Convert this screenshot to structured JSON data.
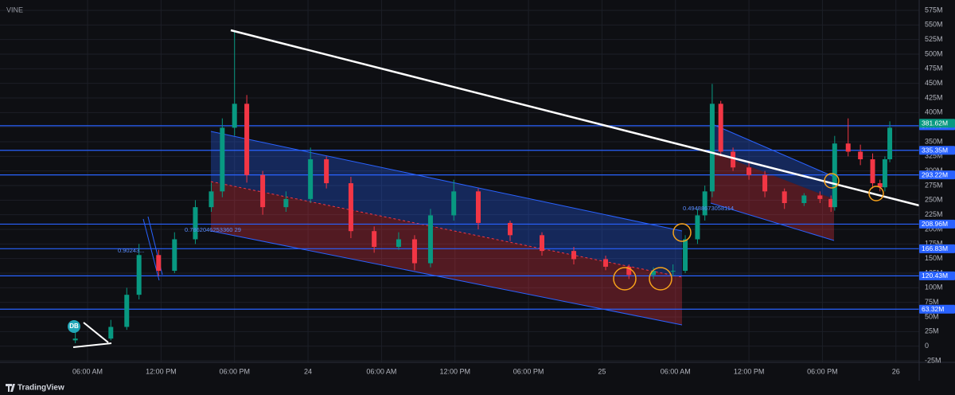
{
  "chart_data": {
    "type": "candlestick",
    "title": "VINE",
    "brand": "TradingView",
    "marker": "DB",
    "grid": true,
    "up_color": "#089981",
    "down_color": "#f23645",
    "level_color": "#2962ff",
    "last_price_color": "#089981",
    "xlim": [
      -1.15,
      73.9
    ],
    "ylim": [
      -27.7,
      592.7
    ],
    "xticks": [
      {
        "value": 6,
        "label": "06:00 AM"
      },
      {
        "value": 12,
        "label": "12:00 PM"
      },
      {
        "value": 18,
        "label": "06:00 PM"
      },
      {
        "value": 24,
        "label": "24"
      },
      {
        "value": 30,
        "label": "06:00 AM"
      },
      {
        "value": 36,
        "label": "12:00 PM"
      },
      {
        "value": 42,
        "label": "06:00 PM"
      },
      {
        "value": 48,
        "label": "25"
      },
      {
        "value": 54,
        "label": "06:00 AM"
      },
      {
        "value": 60,
        "label": "12:00 PM"
      },
      {
        "value": 66,
        "label": "06:00 PM"
      },
      {
        "value": 72,
        "label": "26"
      }
    ],
    "yticks": [
      {
        "value": -25,
        "label": "-25M"
      },
      0,
      {
        "value": 25,
        "label": "25M"
      },
      {
        "value": 50,
        "label": "50M"
      },
      {
        "value": 75,
        "label": "75M"
      },
      {
        "value": 100,
        "label": "100M"
      },
      {
        "value": 125,
        "label": "125M"
      },
      {
        "value": 150,
        "label": "150M"
      },
      {
        "value": 175,
        "label": "175M"
      },
      {
        "value": 200,
        "label": "200M"
      },
      {
        "value": 225,
        "label": "225M"
      },
      {
        "value": 250,
        "label": "250M"
      },
      {
        "value": 275,
        "label": "275M"
      },
      {
        "value": 300,
        "label": "300M"
      },
      {
        "value": 325,
        "label": "325M"
      },
      {
        "value": 350,
        "label": "350M"
      },
      {
        "value": 375,
        "label": "375M"
      },
      {
        "value": 400,
        "label": "400M"
      },
      {
        "value": 425,
        "label": "425M"
      },
      {
        "value": 450,
        "label": "450M"
      },
      {
        "value": 475,
        "label": "475M"
      },
      {
        "value": 500,
        "label": "500M"
      },
      {
        "value": 525,
        "label": "525M"
      },
      {
        "value": 550,
        "label": "550M"
      },
      {
        "value": 575,
        "label": "575M"
      }
    ],
    "levels": [
      {
        "value": 377.48,
        "label": "377.48M"
      },
      {
        "value": 335.35,
        "label": "335.35M"
      },
      {
        "value": 293.22,
        "label": "293.22M"
      },
      {
        "value": 208.96,
        "label": "208.96M"
      },
      {
        "value": 166.83,
        "label": "166.83M"
      },
      {
        "value": 120.43,
        "label": "120.43M"
      },
      {
        "value": 63.32,
        "label": "63.32M"
      }
    ],
    "last_price": {
      "value": 381.62,
      "label": "381.62M"
    },
    "annotations": [
      "0.7862046253360 29",
      "0.90243...",
      "0.49488673058114"
    ],
    "candles": {
      "x": [
        5,
        7.9,
        9.2,
        10.2,
        11.8,
        13.1,
        14.8,
        16.1,
        17,
        18,
        19,
        20.3,
        22.2,
        24.2,
        25.5,
        27.5,
        29.4,
        31.4,
        32.7,
        34,
        35.9,
        37.9,
        40.5,
        43.1,
        45.7,
        48.3,
        50.2,
        52.2,
        53.8,
        54.8,
        55.8,
        56.4,
        57,
        57.7,
        58.7,
        60,
        61.3,
        62.9,
        64.5,
        65.8,
        66.7,
        67,
        68.1,
        69.1,
        70.1,
        70.7,
        71.1,
        71.5
      ],
      "open": [
        10,
        13,
        33,
        88,
        156,
        129,
        183,
        238,
        265,
        374,
        415,
        293,
        238,
        252,
        320,
        279,
        197,
        170,
        183,
        142,
        224,
        265,
        211,
        190,
        163,
        149,
        136,
        122,
        129,
        129,
        183,
        224,
        265,
        415,
        333,
        306,
        293,
        265,
        245,
        258,
        252,
        238,
        347,
        333,
        320,
        279,
        272,
        320
      ],
      "high": [
        25,
        45,
        100,
        175,
        165,
        195,
        250,
        280,
        390,
        538,
        430,
        300,
        265,
        340,
        325,
        290,
        205,
        195,
        190,
        235,
        285,
        270,
        215,
        195,
        170,
        155,
        140,
        135,
        140,
        190,
        235,
        275,
        449,
        420,
        340,
        315,
        300,
        270,
        262,
        265,
        258,
        360,
        390,
        345,
        330,
        285,
        325,
        385
      ],
      "low": [
        5,
        10,
        28,
        80,
        120,
        125,
        175,
        230,
        255,
        360,
        280,
        225,
        230,
        245,
        270,
        185,
        160,
        165,
        130,
        135,
        215,
        200,
        180,
        155,
        140,
        130,
        115,
        115,
        120,
        125,
        175,
        215,
        255,
        325,
        300,
        285,
        255,
        235,
        240,
        245,
        230,
        232,
        325,
        310,
        270,
        265,
        265,
        315
      ],
      "close": [
        13,
        33,
        88,
        156,
        129,
        183,
        238,
        265,
        374,
        415,
        293,
        238,
        252,
        320,
        279,
        197,
        170,
        183,
        142,
        224,
        265,
        211,
        190,
        163,
        149,
        136,
        122,
        129,
        129,
        183,
        224,
        265,
        415,
        333,
        306,
        293,
        265,
        245,
        258,
        252,
        238,
        347,
        333,
        320,
        279,
        272,
        320,
        374
      ]
    }
  }
}
